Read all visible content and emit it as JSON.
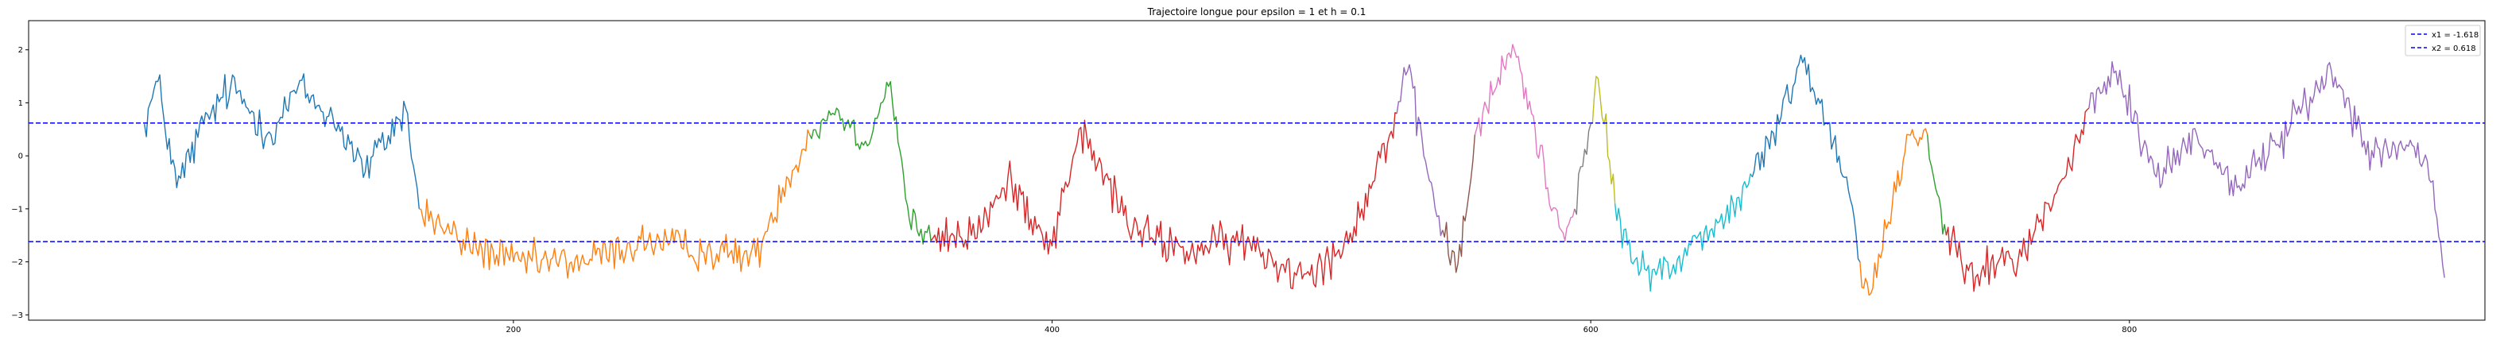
{
  "chart_data": {
    "type": "line",
    "title": "Trajectoire longue pour epsilon = 1 et h = 0.1",
    "xlabel": "",
    "ylabel": "",
    "xlim": [
      20,
      932
    ],
    "ylim": [
      -3.1,
      2.55
    ],
    "x_ticks": [
      200,
      400,
      600,
      800
    ],
    "y_ticks": [
      -3,
      -2,
      -1,
      0,
      1,
      2
    ],
    "grid": false,
    "legend_position": "top-right",
    "hlines": [
      {
        "name": "x1 = -1.618",
        "y": -1.618,
        "color": "#0000ff",
        "style": "dashed"
      },
      {
        "name": "x2 = 0.618",
        "y": 0.618,
        "color": "#0000ff",
        "style": "dashed"
      }
    ],
    "segments": [
      {
        "color": "#1f77b4",
        "x0": 63,
        "x1": 165,
        "start": 0.6,
        "end": -1.0,
        "vol": 0.32,
        "waypoints": [
          [
            68,
            1.4
          ],
          [
            75,
            -0.6
          ],
          [
            85,
            0.6
          ],
          [
            95,
            1.3
          ],
          [
            110,
            0.4
          ],
          [
            120,
            1.3
          ],
          [
            135,
            0.6
          ],
          [
            145,
            -0.3
          ],
          [
            160,
            0.9
          ]
        ]
      },
      {
        "color": "#ff7f0e",
        "x0": 165,
        "x1": 310,
        "start": -1.0,
        "end": 0.4,
        "vol": 0.3,
        "waypoints": [
          [
            180,
            -1.6
          ],
          [
            200,
            -2.0
          ],
          [
            225,
            -2.0
          ],
          [
            250,
            -1.6
          ],
          [
            270,
            -1.8
          ],
          [
            290,
            -1.9
          ],
          [
            300,
            -0.6
          ]
        ]
      },
      {
        "color": "#2ca02c",
        "x0": 310,
        "x1": 355,
        "start": 0.4,
        "end": -1.6,
        "vol": 0.25,
        "waypoints": [
          [
            320,
            0.9
          ],
          [
            330,
            0.2
          ],
          [
            340,
            1.4
          ],
          [
            347,
            -1.2
          ]
        ]
      },
      {
        "color": "#d62728",
        "x0": 355,
        "x1": 528,
        "start": -1.6,
        "end": 0.8,
        "vol": 0.32,
        "waypoints": [
          [
            370,
            -1.5
          ],
          [
            385,
            -0.5
          ],
          [
            400,
            -1.7
          ],
          [
            410,
            0.5
          ],
          [
            430,
            -1.4
          ],
          [
            450,
            -1.8
          ],
          [
            470,
            -1.6
          ],
          [
            490,
            -2.2
          ],
          [
            505,
            -1.9
          ],
          [
            515,
            -1.0
          ]
        ]
      },
      {
        "color": "#9467bd",
        "x0": 528,
        "x1": 545,
        "start": 0.8,
        "end": -1.4,
        "vol": 0.3,
        "waypoints": [
          [
            532,
            1.6
          ],
          [
            538,
            0.0
          ]
        ]
      },
      {
        "color": "#8c564b",
        "x0": 545,
        "x1": 557,
        "start": -1.4,
        "end": 0.4,
        "vol": 0.3,
        "waypoints": [
          [
            550,
            -2.2
          ],
          [
            554,
            -1.0
          ]
        ]
      },
      {
        "color": "#e377c2",
        "x0": 557,
        "x1": 594,
        "start": 0.4,
        "end": -1.0,
        "vol": 0.3,
        "waypoints": [
          [
            565,
            1.3
          ],
          [
            571,
            2.1
          ],
          [
            578,
            0.8
          ],
          [
            584,
            -0.6
          ],
          [
            589,
            -1.4
          ]
        ]
      },
      {
        "color": "#7f7f7f",
        "x0": 594,
        "x1": 600,
        "start": -1.0,
        "end": 0.6,
        "vol": 0.25,
        "waypoints": [
          [
            597,
            -0.2
          ]
        ]
      },
      {
        "color": "#bcbd22",
        "x0": 600,
        "x1": 609,
        "start": 0.6,
        "end": -0.9,
        "vol": 0.3,
        "waypoints": [
          [
            602,
            1.5
          ],
          [
            605,
            0.6
          ]
        ]
      },
      {
        "color": "#17becf",
        "x0": 609,
        "x1": 660,
        "start": -0.9,
        "end": -0.4,
        "vol": 0.3,
        "waypoints": [
          [
            615,
            -2.0
          ],
          [
            630,
            -2.2
          ],
          [
            640,
            -1.5
          ],
          [
            650,
            -1.2
          ]
        ]
      },
      {
        "color": "#1f77b4",
        "x0": 660,
        "x1": 700,
        "start": -0.4,
        "end": -2.0,
        "vol": 0.3,
        "waypoints": [
          [
            670,
            0.6
          ],
          [
            678,
            1.9
          ],
          [
            688,
            0.6
          ],
          [
            695,
            -0.4
          ]
        ]
      },
      {
        "color": "#ff7f0e",
        "x0": 700,
        "x1": 725,
        "start": -2.0,
        "end": 0.4,
        "vol": 0.3,
        "waypoints": [
          [
            704,
            -2.6
          ],
          [
            712,
            -0.9
          ],
          [
            718,
            0.4
          ]
        ]
      },
      {
        "color": "#2ca02c",
        "x0": 725,
        "x1": 732,
        "start": 0.4,
        "end": -1.5,
        "vol": 0.25,
        "waypoints": [
          [
            728,
            -0.6
          ]
        ]
      },
      {
        "color": "#d62728",
        "x0": 732,
        "x1": 785,
        "start": -1.5,
        "end": 0.9,
        "vol": 0.35,
        "waypoints": [
          [
            745,
            -2.2
          ],
          [
            760,
            -1.9
          ],
          [
            770,
            -0.9
          ],
          [
            778,
            -0.2
          ]
        ]
      },
      {
        "color": "#9467bd",
        "x0": 785,
        "x1": 917,
        "start": 0.9,
        "end": -2.3,
        "vol": 0.3,
        "waypoints": [
          [
            795,
            1.6
          ],
          [
            810,
            -0.4
          ],
          [
            825,
            0.4
          ],
          [
            840,
            -0.6
          ],
          [
            860,
            0.6
          ],
          [
            875,
            1.6
          ],
          [
            890,
            0.1
          ],
          [
            905,
            0.2
          ],
          [
            912,
            -0.5
          ]
        ]
      }
    ]
  },
  "legend": {
    "items": [
      {
        "label": "x1 = -1.618",
        "color": "#0000ff"
      },
      {
        "label": "x2 = 0.618",
        "color": "#0000ff"
      }
    ]
  }
}
